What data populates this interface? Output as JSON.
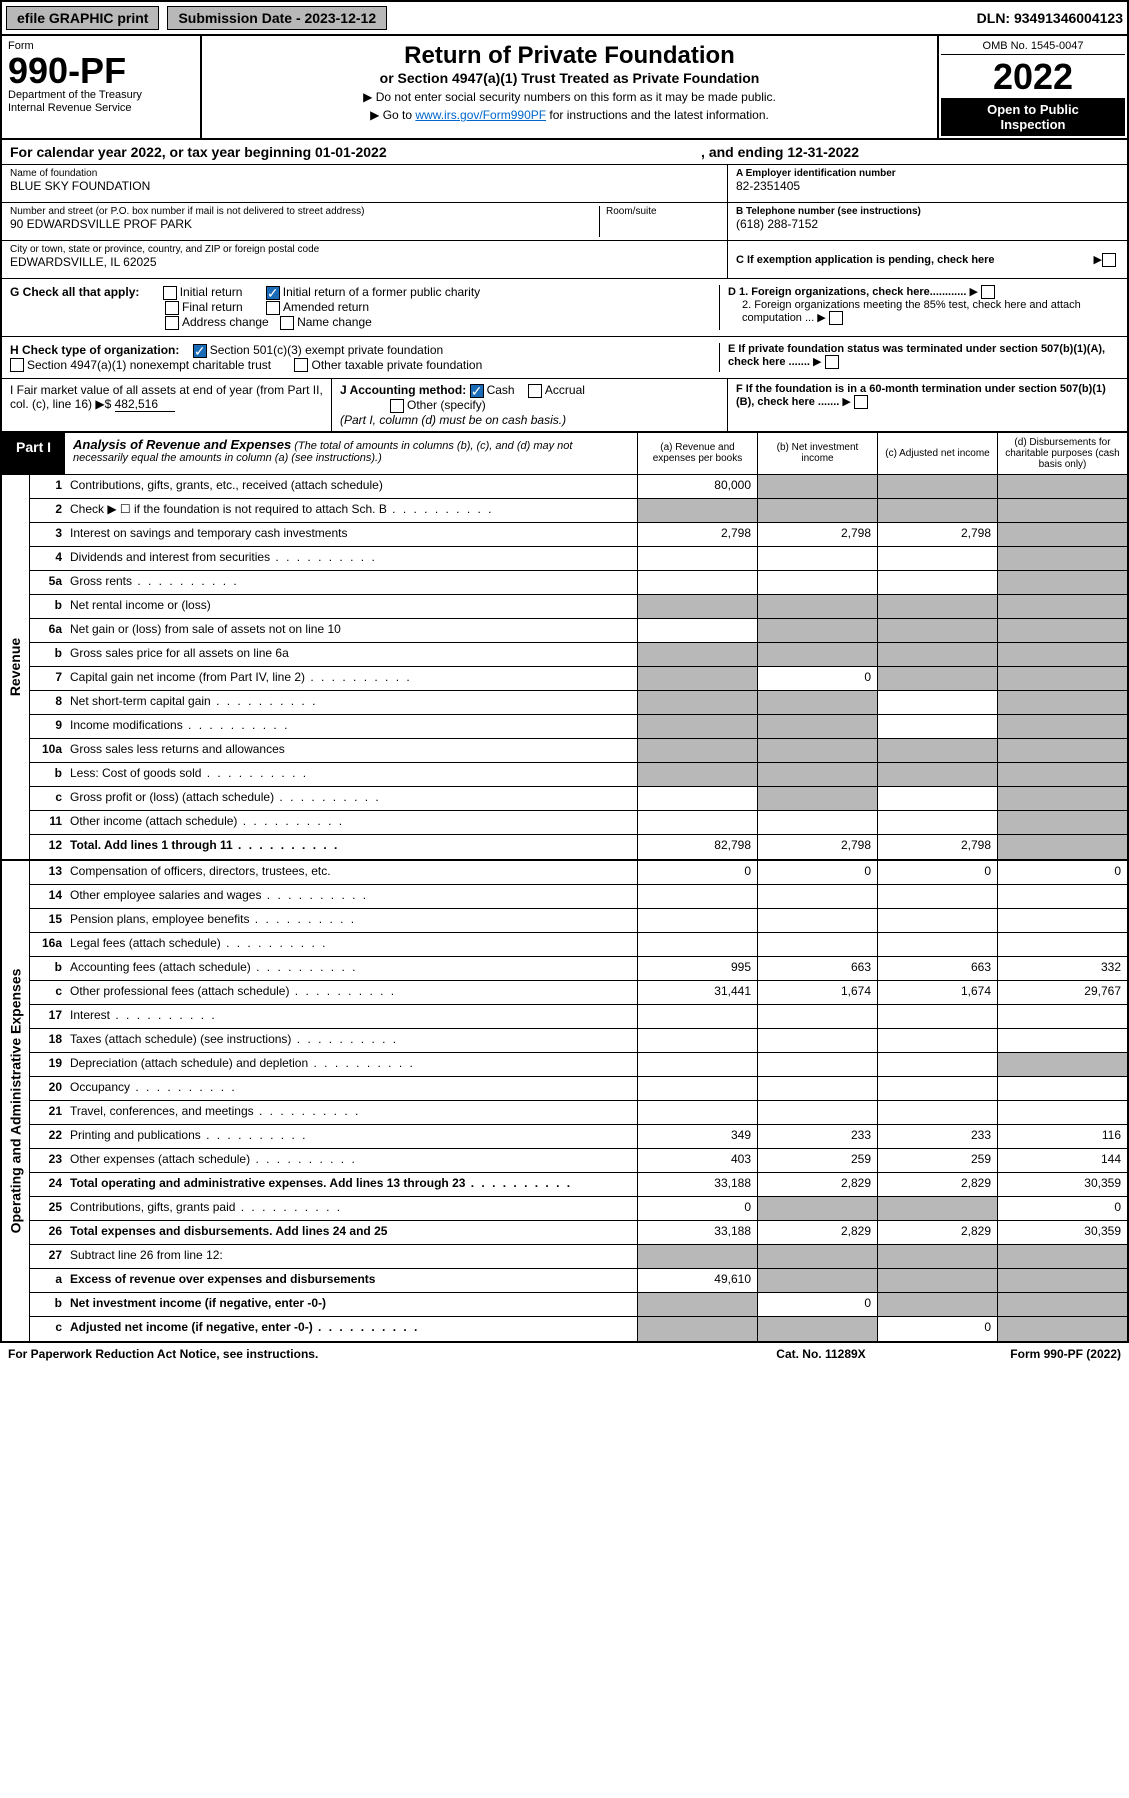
{
  "topbar": {
    "efile": "efile GRAPHIC print",
    "sub_label": "Submission Date - 2023-12-12",
    "dln": "DLN: 93491346004123"
  },
  "header": {
    "form_word": "Form",
    "form_num": "990-PF",
    "dept": "Department of the Treasury",
    "irs": "Internal Revenue Service",
    "title": "Return of Private Foundation",
    "subtitle": "or Section 4947(a)(1) Trust Treated as Private Foundation",
    "note1": "▶ Do not enter social security numbers on this form as it may be made public.",
    "note2_pre": "▶ Go to ",
    "note2_link": "www.irs.gov/Form990PF",
    "note2_post": " for instructions and the latest information.",
    "omb": "OMB No. 1545-0047",
    "year": "2022",
    "open1": "Open to Public",
    "open2": "Inspection"
  },
  "calyear": {
    "pre": "For calendar year 2022, or tax year beginning 01-01-2022",
    "mid": ", and ending 12-31-2022"
  },
  "info": {
    "name_label": "Name of foundation",
    "name": "BLUE SKY FOUNDATION",
    "addr_label": "Number and street (or P.O. box number if mail is not delivered to street address)",
    "addr": "90 EDWARDSVILLE PROF PARK",
    "room_label": "Room/suite",
    "city_label": "City or town, state or province, country, and ZIP or foreign postal code",
    "city": "EDWARDSVILLE, IL  62025",
    "a_label": "A Employer identification number",
    "a_val": "82-2351405",
    "b_label": "B Telephone number (see instructions)",
    "b_val": "(618) 288-7152",
    "c_label": "C If exemption application is pending, check here"
  },
  "g": {
    "label": "G Check all that apply:",
    "opts": [
      "Initial return",
      "Initial return of a former public charity",
      "Final return",
      "Amended return",
      "Address change",
      "Name change"
    ]
  },
  "d": {
    "d1": "D 1. Foreign organizations, check here............",
    "d2": "2. Foreign organizations meeting the 85% test, check here and attach computation ..."
  },
  "h": {
    "label": "H Check type of organization:",
    "opt1": "Section 501(c)(3) exempt private foundation",
    "opt2": "Section 4947(a)(1) nonexempt charitable trust",
    "opt3": "Other taxable private foundation"
  },
  "e": {
    "label": "E  If private foundation status was terminated under section 507(b)(1)(A), check here ......."
  },
  "i": {
    "label": "I Fair market value of all assets at end of year (from Part II, col. (c), line 16) ▶$",
    "val": "482,516"
  },
  "j": {
    "label": "J Accounting method:",
    "cash": "Cash",
    "accrual": "Accrual",
    "other": "Other (specify)",
    "note": "(Part I, column (d) must be on cash basis.)"
  },
  "f": {
    "label": "F  If the foundation is in a 60-month termination under section 507(b)(1)(B), check here ......."
  },
  "part1": {
    "label": "Part I",
    "title": "Analysis of Revenue and Expenses",
    "desc": "(The total of amounts in columns (b), (c), and (d) may not necessarily equal the amounts in column (a) (see instructions).)",
    "col_a": "(a)   Revenue and expenses per books",
    "col_b": "(b)   Net investment income",
    "col_c": "(c)   Adjusted net income",
    "col_d": "(d)   Disbursements for charitable purposes (cash basis only)"
  },
  "vtabs": {
    "rev": "Revenue",
    "exp": "Operating and Administrative Expenses"
  },
  "rows": [
    {
      "n": "1",
      "d": "Contributions, gifts, grants, etc., received (attach schedule)",
      "a": "80,000",
      "ga": false,
      "gb": true,
      "gc": true,
      "gd": true
    },
    {
      "n": "2",
      "d": "Check ▶ ☐ if the foundation is not required to attach Sch. B",
      "dots": true,
      "ga": true,
      "gb": true,
      "gc": true,
      "gd": true
    },
    {
      "n": "3",
      "d": "Interest on savings and temporary cash investments",
      "a": "2,798",
      "b": "2,798",
      "c": "2,798",
      "gd": true
    },
    {
      "n": "4",
      "d": "Dividends and interest from securities",
      "dots": true,
      "gd": true
    },
    {
      "n": "5a",
      "d": "Gross rents",
      "dots": true,
      "gd": true
    },
    {
      "n": "b",
      "d": "Net rental income or (loss)",
      "ga": true,
      "gb": true,
      "gc": true,
      "gd": true
    },
    {
      "n": "6a",
      "d": "Net gain or (loss) from sale of assets not on line 10",
      "gb": true,
      "gc": true,
      "gd": true
    },
    {
      "n": "b",
      "d": "Gross sales price for all assets on line 6a",
      "ga": true,
      "gb": true,
      "gc": true,
      "gd": true
    },
    {
      "n": "7",
      "d": "Capital gain net income (from Part IV, line 2)",
      "dots": true,
      "ga": true,
      "b": "0",
      "gc": true,
      "gd": true
    },
    {
      "n": "8",
      "d": "Net short-term capital gain",
      "dots": true,
      "ga": true,
      "gb": true,
      "gd": true
    },
    {
      "n": "9",
      "d": "Income modifications",
      "dots": true,
      "ga": true,
      "gb": true,
      "gd": true
    },
    {
      "n": "10a",
      "d": "Gross sales less returns and allowances",
      "ga": true,
      "gb": true,
      "gc": true,
      "gd": true
    },
    {
      "n": "b",
      "d": "Less: Cost of goods sold",
      "dots": true,
      "ga": true,
      "gb": true,
      "gc": true,
      "gd": true
    },
    {
      "n": "c",
      "d": "Gross profit or (loss) (attach schedule)",
      "dots": true,
      "gb": true,
      "gd": true
    },
    {
      "n": "11",
      "d": "Other income (attach schedule)",
      "dots": true,
      "gd": true
    },
    {
      "n": "12",
      "d": "Total. Add lines 1 through 11",
      "bold": true,
      "dots": true,
      "a": "82,798",
      "b": "2,798",
      "c": "2,798",
      "gd": true
    }
  ],
  "erows": [
    {
      "n": "13",
      "d": "Compensation of officers, directors, trustees, etc.",
      "a": "0",
      "b": "0",
      "c": "0",
      "dd": "0"
    },
    {
      "n": "14",
      "d": "Other employee salaries and wages",
      "dots": true
    },
    {
      "n": "15",
      "d": "Pension plans, employee benefits",
      "dots": true
    },
    {
      "n": "16a",
      "d": "Legal fees (attach schedule)",
      "dots": true
    },
    {
      "n": "b",
      "d": "Accounting fees (attach schedule)",
      "dots": true,
      "a": "995",
      "b": "663",
      "c": "663",
      "dd": "332"
    },
    {
      "n": "c",
      "d": "Other professional fees (attach schedule)",
      "dots": true,
      "a": "31,441",
      "b": "1,674",
      "c": "1,674",
      "dd": "29,767"
    },
    {
      "n": "17",
      "d": "Interest",
      "dots": true
    },
    {
      "n": "18",
      "d": "Taxes (attach schedule) (see instructions)",
      "dots": true
    },
    {
      "n": "19",
      "d": "Depreciation (attach schedule) and depletion",
      "dots": true,
      "gd": true
    },
    {
      "n": "20",
      "d": "Occupancy",
      "dots": true
    },
    {
      "n": "21",
      "d": "Travel, conferences, and meetings",
      "dots": true
    },
    {
      "n": "22",
      "d": "Printing and publications",
      "dots": true,
      "a": "349",
      "b": "233",
      "c": "233",
      "dd": "116"
    },
    {
      "n": "23",
      "d": "Other expenses (attach schedule)",
      "dots": true,
      "a": "403",
      "b": "259",
      "c": "259",
      "dd": "144"
    },
    {
      "n": "24",
      "d": "Total operating and administrative expenses. Add lines 13 through 23",
      "bold": true,
      "dots": true,
      "a": "33,188",
      "b": "2,829",
      "c": "2,829",
      "dd": "30,359"
    },
    {
      "n": "25",
      "d": "Contributions, gifts, grants paid",
      "dots": true,
      "a": "0",
      "gb": true,
      "gc": true,
      "dd": "0"
    },
    {
      "n": "26",
      "d": "Total expenses and disbursements. Add lines 24 and 25",
      "bold": true,
      "a": "33,188",
      "b": "2,829",
      "c": "2,829",
      "dd": "30,359"
    },
    {
      "n": "27",
      "d": "Subtract line 26 from line 12:",
      "ga": true,
      "gb": true,
      "gc": true,
      "gd": true
    },
    {
      "n": "a",
      "d": "Excess of revenue over expenses and disbursements",
      "bold": true,
      "a": "49,610",
      "gb": true,
      "gc": true,
      "gd": true
    },
    {
      "n": "b",
      "d": "Net investment income (if negative, enter -0-)",
      "bold": true,
      "ga": true,
      "b": "0",
      "gc": true,
      "gd": true
    },
    {
      "n": "c",
      "d": "Adjusted net income (if negative, enter -0-)",
      "bold": true,
      "dots": true,
      "ga": true,
      "gb": true,
      "c": "0",
      "gd": true
    }
  ],
  "footer": {
    "l": "For Paperwork Reduction Act Notice, see instructions.",
    "m": "Cat. No. 11289X",
    "r": "Form 990-PF (2022)"
  }
}
